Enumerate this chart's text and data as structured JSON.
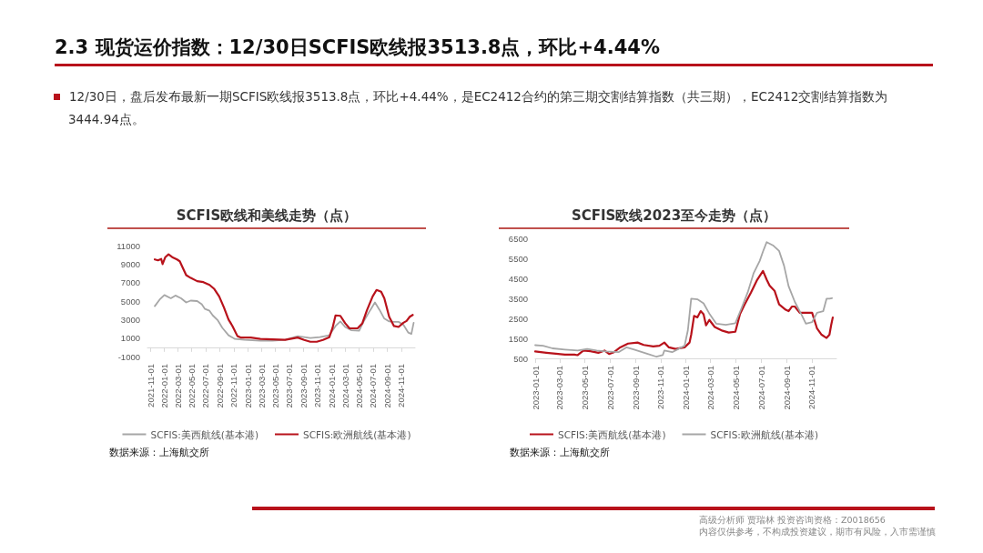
{
  "chart_data": [
    {
      "type": "line",
      "title": "SCFIS欧线和美线走势（点）",
      "annotations": [
        "2.3 现货运价指数：12/30日SCFIS欧线报3513.8点，环比+4.44%",
        "12/30日，盘后发布最新一期SCFIS欧线报3513.8点，环比+4.44%，是EC2412合约的第三期交割结算指数（共三期），EC2412交割结算指数为3444.94点。",
        "数据来源：上海航交所",
        "高级分析师 贾瑞林 投资咨询资格：Z0018656",
        "内容仅供参考，不构成投资建议，期市有风险，入市需谨慎"
      ],
      "xlim": [
        "2021-10-20",
        "2024-12-31"
      ],
      "xticks": [
        "2021-11-01",
        "2022-01-01",
        "2022-03-01",
        "2022-05-01",
        "2022-07-01",
        "2022-09-01",
        "2022-11-01",
        "2023-01-01",
        "2023-03-01",
        "2023-05-01",
        "2023-07-01",
        "2023-09-01",
        "2023-11-01",
        "2024-01-01",
        "2024-03-01",
        "2024-05-01",
        "2024-07-01",
        "2024-09-01",
        "2024-11-01"
      ],
      "ylim": [
        -1000,
        11000
      ],
      "yticks": [
        -1000,
        1000,
        3000,
        5000,
        7000,
        9000,
        11000
      ],
      "grid": false,
      "legend": "bottom",
      "marker": "none",
      "line_style": "solid",
      "series": [
        {
          "name": "SCFIS:美西航线(基本港)",
          "color": "#a6a6a6",
          "x": [
            "2021-11-21",
            "2021-12-12",
            "2022-01-02",
            "2022-01-30",
            "2022-02-19",
            "2022-03-16",
            "2022-04-07",
            "2022-04-27",
            "2022-05-25",
            "2022-06-14",
            "2022-06-28",
            "2022-07-18",
            "2022-08-01",
            "2022-08-22",
            "2022-09-12",
            "2022-10-09",
            "2022-11-06",
            "2022-12-17",
            "2023-02-25",
            "2023-04-19",
            "2023-06-13",
            "2023-08-07",
            "2023-10-01",
            "2023-11-12",
            "2023-12-23",
            "2024-01-19",
            "2024-02-09",
            "2024-03-01",
            "2024-03-27",
            "2024-05-01",
            "2024-05-21",
            "2024-06-18",
            "2024-07-09",
            "2024-07-29",
            "2024-08-19",
            "2024-09-09",
            "2024-09-30",
            "2024-10-20",
            "2024-11-10",
            "2024-12-01",
            "2024-12-15",
            "2024-12-25"
          ],
          "values": [
            4450,
            5150,
            5650,
            5300,
            5600,
            5300,
            4850,
            5050,
            5000,
            4650,
            4150,
            3950,
            3450,
            2950,
            2100,
            1300,
            900,
            800,
            700,
            700,
            800,
            1200,
            1000,
            1100,
            1300,
            2300,
            2800,
            2200,
            1850,
            1800,
            2800,
            4000,
            4850,
            4050,
            3100,
            2800,
            2750,
            2750,
            2450,
            1600,
            1450,
            2650
          ]
        },
        {
          "name": "SCFIS:欧洲航线(基本港)",
          "color": "#b8121b",
          "x": [
            "2021-11-21",
            "2021-12-05",
            "2021-12-19",
            "2021-12-25",
            "2022-01-06",
            "2022-01-20",
            "2022-02-05",
            "2022-02-26",
            "2022-03-10",
            "2022-04-07",
            "2022-04-27",
            "2022-05-25",
            "2022-06-21",
            "2022-07-18",
            "2022-08-08",
            "2022-08-29",
            "2022-09-19",
            "2022-10-09",
            "2022-10-26",
            "2022-11-17",
            "2022-12-03",
            "2023-01-14",
            "2023-02-25",
            "2023-04-19",
            "2023-06-13",
            "2023-08-07",
            "2023-09-04",
            "2023-10-01",
            "2023-10-29",
            "2023-11-25",
            "2023-12-23",
            "2024-01-06",
            "2024-01-19",
            "2024-02-09",
            "2024-03-01",
            "2024-03-20",
            "2024-04-24",
            "2024-05-15",
            "2024-06-04",
            "2024-06-29",
            "2024-07-16",
            "2024-08-05",
            "2024-08-19",
            "2024-09-09",
            "2024-09-30",
            "2024-10-20",
            "2024-11-10",
            "2024-11-24",
            "2024-12-08",
            "2024-12-21"
          ],
          "values": [
            9500,
            9400,
            9550,
            9000,
            9750,
            10050,
            9750,
            9500,
            9300,
            7800,
            7500,
            7150,
            7050,
            6750,
            6300,
            5500,
            4300,
            3000,
            2300,
            1200,
            1050,
            1050,
            900,
            850,
            800,
            1050,
            800,
            600,
            600,
            800,
            1100,
            2100,
            3450,
            3400,
            2600,
            2050,
            2050,
            2600,
            4000,
            5500,
            6200,
            6000,
            5300,
            3300,
            2300,
            2200,
            2650,
            2850,
            3300,
            3500
          ]
        }
      ]
    },
    {
      "type": "line",
      "title": "SCFIS欧线2023至今走势（点）",
      "annotations": [
        "数据来源：上海航交所"
      ],
      "xlim": [
        "2023-01-01",
        "2024-12-31"
      ],
      "xticks": [
        "2023-01-01",
        "2023-03-01",
        "2023-05-01",
        "2023-07-01",
        "2023-09-01",
        "2023-11-01",
        "2024-01-01",
        "2024-03-01",
        "2024-05-01",
        "2024-07-01",
        "2024-09-01",
        "2024-11-01"
      ],
      "ylim": [
        500,
        6500
      ],
      "yticks": [
        500,
        1500,
        2500,
        3500,
        4500,
        5500,
        6500
      ],
      "grid": false,
      "legend": "bottom",
      "marker": "none",
      "line_style": "solid",
      "series": [
        {
          "name": "SCFIS:美西航线(基本港)",
          "color": "#b8121b",
          "x": [
            "2023-01-01",
            "2023-01-28",
            "2023-02-20",
            "2023-03-14",
            "2023-04-06",
            "2023-04-14",
            "2023-04-28",
            "2023-05-15",
            "2023-06-03",
            "2023-06-18",
            "2023-06-29",
            "2023-07-11",
            "2023-07-26",
            "2023-08-14",
            "2023-09-06",
            "2023-09-21",
            "2023-10-14",
            "2023-10-29",
            "2023-11-10",
            "2023-11-21",
            "2023-12-07",
            "2023-12-29",
            "2024-01-10",
            "2024-01-14",
            "2024-01-21",
            "2024-01-29",
            "2024-02-06",
            "2024-02-13",
            "2024-02-19",
            "2024-02-27",
            "2024-03-11",
            "2024-03-30",
            "2024-04-14",
            "2024-04-30",
            "2024-05-11",
            "2024-05-22",
            "2024-06-07",
            "2024-06-22",
            "2024-07-06",
            "2024-07-15",
            "2024-07-22",
            "2024-08-03",
            "2024-08-14",
            "2024-08-30",
            "2024-09-06",
            "2024-09-14",
            "2024-09-21",
            "2024-10-03",
            "2024-10-18",
            "2024-11-02",
            "2024-11-14",
            "2024-11-25",
            "2024-12-07",
            "2024-12-14",
            "2024-12-18",
            "2024-12-22"
          ],
          "values": [
            845,
            780,
            735,
            690,
            690,
            660,
            890,
            860,
            780,
            890,
            720,
            810,
            1050,
            1240,
            1290,
            1170,
            1100,
            1130,
            1290,
            1050,
            970,
            1050,
            1290,
            1680,
            2620,
            2550,
            2860,
            2700,
            2150,
            2420,
            2070,
            1880,
            1790,
            1830,
            2700,
            3170,
            3800,
            4430,
            4870,
            4430,
            4140,
            3880,
            3200,
            2930,
            2860,
            3090,
            3090,
            2780,
            2780,
            2780,
            1990,
            1680,
            1520,
            1680,
            2150,
            2540
          ]
        },
        {
          "name": "SCFIS:欧洲航线(基本港)",
          "color": "#a6a6a6",
          "x": [
            "2023-01-01",
            "2023-01-20",
            "2023-02-12",
            "2023-03-14",
            "2023-04-14",
            "2023-05-07",
            "2023-05-30",
            "2023-06-22",
            "2023-07-22",
            "2023-08-10",
            "2023-08-29",
            "2023-09-29",
            "2023-10-22",
            "2023-11-06",
            "2023-11-10",
            "2023-11-29",
            "2023-12-14",
            "2023-12-29",
            "2024-01-06",
            "2024-01-14",
            "2024-01-29",
            "2024-02-13",
            "2024-02-28",
            "2024-03-15",
            "2024-04-07",
            "2024-04-30",
            "2024-05-15",
            "2024-05-30",
            "2024-06-13",
            "2024-06-28",
            "2024-07-06",
            "2024-07-15",
            "2024-07-30",
            "2024-08-14",
            "2024-08-26",
            "2024-09-06",
            "2024-09-21",
            "2024-10-07",
            "2024-10-18",
            "2024-11-02",
            "2024-11-14",
            "2024-11-29",
            "2024-12-07",
            "2024-12-14",
            "2024-12-20"
          ],
          "values": [
            1160,
            1130,
            1000,
            940,
            890,
            970,
            890,
            845,
            810,
            1050,
            940,
            735,
            580,
            660,
            890,
            810,
            970,
            1130,
            1910,
            3480,
            3450,
            3250,
            2700,
            2230,
            2180,
            2260,
            3010,
            3800,
            4740,
            5370,
            5840,
            6310,
            6150,
            5870,
            5130,
            4110,
            3330,
            2700,
            2230,
            2310,
            2780,
            2860,
            3480,
            3480,
            3510
          ]
        }
      ]
    }
  ]
}
